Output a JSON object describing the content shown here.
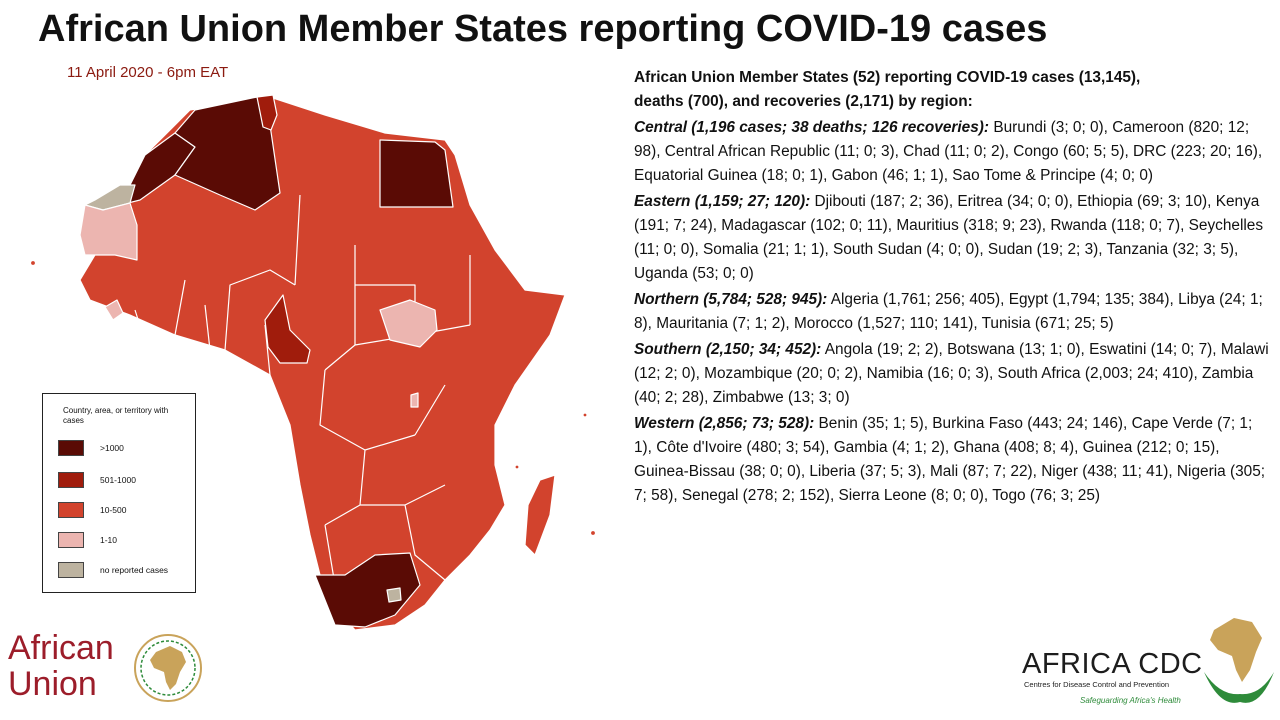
{
  "title": "African Union Member States reporting COVID-19 cases",
  "date": "11 April 2020 - 6pm EAT",
  "summary": {
    "heading_line1": "African Union Member States (52) reporting COVID-19 cases (13,145),",
    "heading_line2": "deaths (700), and recoveries (2,171) by region:"
  },
  "regions": [
    {
      "name": "Central (1,196 cases; 38 deaths; 126 recoveries):",
      "text": " Burundi (3; 0; 0), Cameroon (820; 12; 98), Central African Republic (11; 0; 3), Chad (11; 0; 2), Congo (60; 5; 5), DRC (223; 20; 16), Equatorial Guinea (18; 0; 1), Gabon (46; 1; 1), Sao Tome & Principe (4; 0; 0)"
    },
    {
      "name": "Eastern (1,159; 27; 120):",
      "text": " Djibouti (187; 2; 36), Eritrea (34; 0; 0), Ethiopia (69; 3; 10), Kenya (191; 7; 24), Madagascar (102; 0; 11), Mauritius (318; 9; 23), Rwanda (118; 0; 7), Seychelles (11; 0; 0), Somalia (21; 1; 1), South Sudan (4; 0; 0), Sudan (19; 2; 3), Tanzania (32; 3; 5), Uganda (53; 0; 0)"
    },
    {
      "name": "Northern (5,784; 528; 945):",
      "text": " Algeria (1,761; 256; 405), Egypt (1,794; 135; 384), Libya (24; 1; 8), Mauritania (7; 1; 2), Morocco (1,527; 110; 141), Tunisia (671; 25; 5)"
    },
    {
      "name": "Southern (2,150; 34; 452):",
      "text": " Angola (19; 2; 2), Botswana (13; 1; 0), Eswatini (14; 0; 7), Malawi (12; 2; 0), Mozambique (20; 0; 2),  Namibia (16; 0; 3), South Africa (2,003; 24; 410), Zambia (40; 2; 28), Zimbabwe (13; 3; 0)"
    },
    {
      "name": "Western (2,856; 73; 528):",
      "text": " Benin (35; 1; 5), Burkina Faso (443; 24; 146), Cape Verde (7; 1; 1), Côte d'Ivoire (480; 3; 54), Gambia (4; 1; 2), Ghana (408; 8; 4), Guinea (212; 0; 15), Guinea-Bissau (38; 0; 0), Liberia (37; 5; 3), Mali (87; 7; 22), Niger (438; 11; 41), Nigeria (305; 7; 58), Senegal (278; 2; 152), Sierra Leone (8; 0; 0), Togo (76; 3; 25)"
    }
  ],
  "legend": {
    "title": "Country, area, or territory with cases",
    "items": [
      {
        "label": ">1000",
        "color": "#5a0b05"
      },
      {
        "label": "501-1000",
        "color": "#a01c0c"
      },
      {
        "label": "10-500",
        "color": "#d2432d"
      },
      {
        "label": "1-10",
        "color": "#ecb5b0"
      },
      {
        "label": "no reported cases",
        "color": "#bdb3a0"
      }
    ]
  },
  "colors": {
    "gt1000": "#5a0b05",
    "r501_1000": "#a01c0c",
    "r10_500": "#d2432d",
    "r1_10": "#ecb5b0",
    "none": "#bdb3a0",
    "date_text": "#8b1a10",
    "au_red": "#9c1d2a",
    "cdc_green": "#2e8b3a",
    "cdc_gold": "#c9a35a"
  },
  "logos": {
    "african_union_line1": "African",
    "african_union_line2": "Union",
    "africa_cdc_title": "AFRICA CDC",
    "africa_cdc_subtitle": "Centres for Disease Control and Prevention",
    "africa_cdc_tagline": "Safeguarding Africa's Health"
  }
}
